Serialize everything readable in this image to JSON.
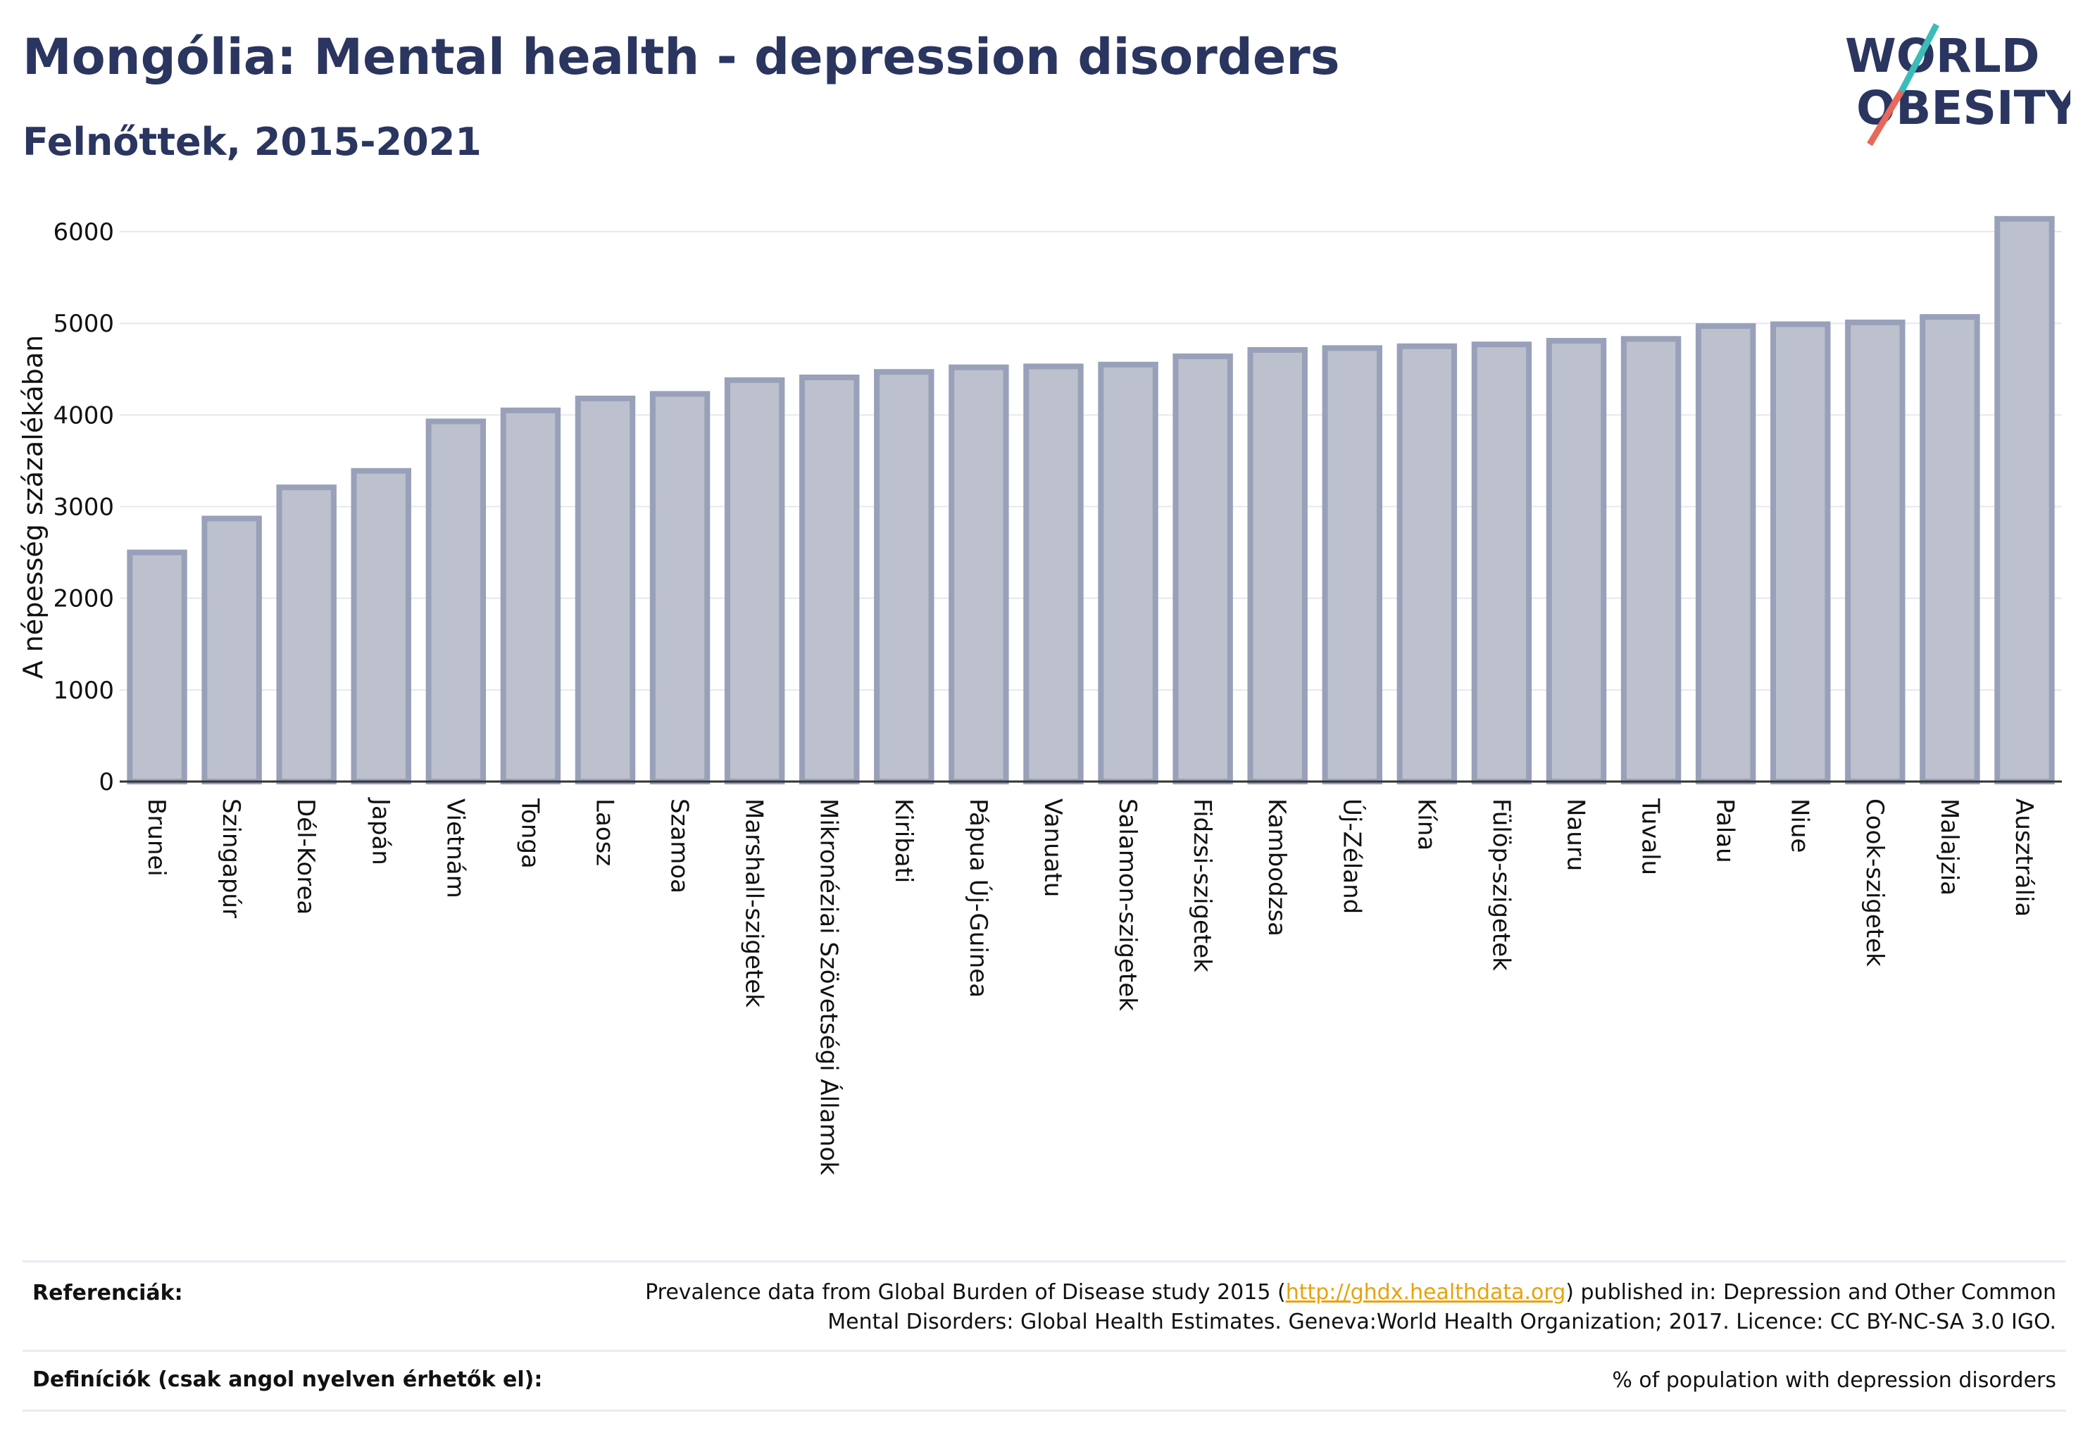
{
  "header": {
    "title": "Mongólia: Mental health - depression disorders",
    "subtitle": "Felnőttek, 2015-2021"
  },
  "logo": {
    "line1": "WORLD",
    "line2": "OBESITY",
    "accent_colors": [
      "#3bbcb8",
      "#e8685a"
    ]
  },
  "colors": {
    "title": "#2a3560",
    "bar_fill": "#bcc1cd",
    "bar_stroke": "#99a0b9",
    "link": "#e8a20c"
  },
  "chart_data": {
    "type": "bar",
    "title": "",
    "xlabel": "",
    "ylabel": "A népesség százalékában",
    "ylim": [
      0,
      6300
    ],
    "yticks": [
      0,
      1000,
      2000,
      3000,
      4000,
      5000,
      6000
    ],
    "grid": true,
    "categories": [
      "Brunei",
      "Szingapúr",
      "Dél-Korea",
      "Japán",
      "Vietnám",
      "Tonga",
      "Laosz",
      "Szamoa",
      "Marshall-szigetek",
      "Mikronéziai Szövetségi Államok",
      "Kiribati",
      "Pápua Új-Guinea",
      "Vanuatu",
      "Salamon-szigetek",
      "Fidzsi-szigetek",
      "Kambodzsa",
      "Új-Zéland",
      "Kína",
      "Fülöp-szigetek",
      "Nauru",
      "Tuvalu",
      "Palau",
      "Niue",
      "Cook-szigetek",
      "Malajzia",
      "Ausztrália"
    ],
    "values": [
      2500,
      2870,
      3210,
      3390,
      3930,
      4050,
      4180,
      4230,
      4380,
      4410,
      4470,
      4520,
      4530,
      4550,
      4640,
      4710,
      4730,
      4750,
      4770,
      4810,
      4830,
      4970,
      4990,
      5010,
      5070,
      6140
    ]
  },
  "footer": {
    "references_label": "Referenciák:",
    "references_text_before": "Prevalence data from Global Burden of Disease study 2015 (",
    "references_link": "http://ghdx.healthdata.org",
    "references_text_after": ") published in: Depression and Other Common",
    "references_line2": "Mental Disorders: Global Health Estimates. Geneva:World Health Organization; 2017. Licence: CC BY-NC-SA 3.0 IGO.",
    "definitions_label": "Definíciók (csak angol nyelven érhetők el):",
    "definitions_text": "% of population with depression disorders"
  }
}
